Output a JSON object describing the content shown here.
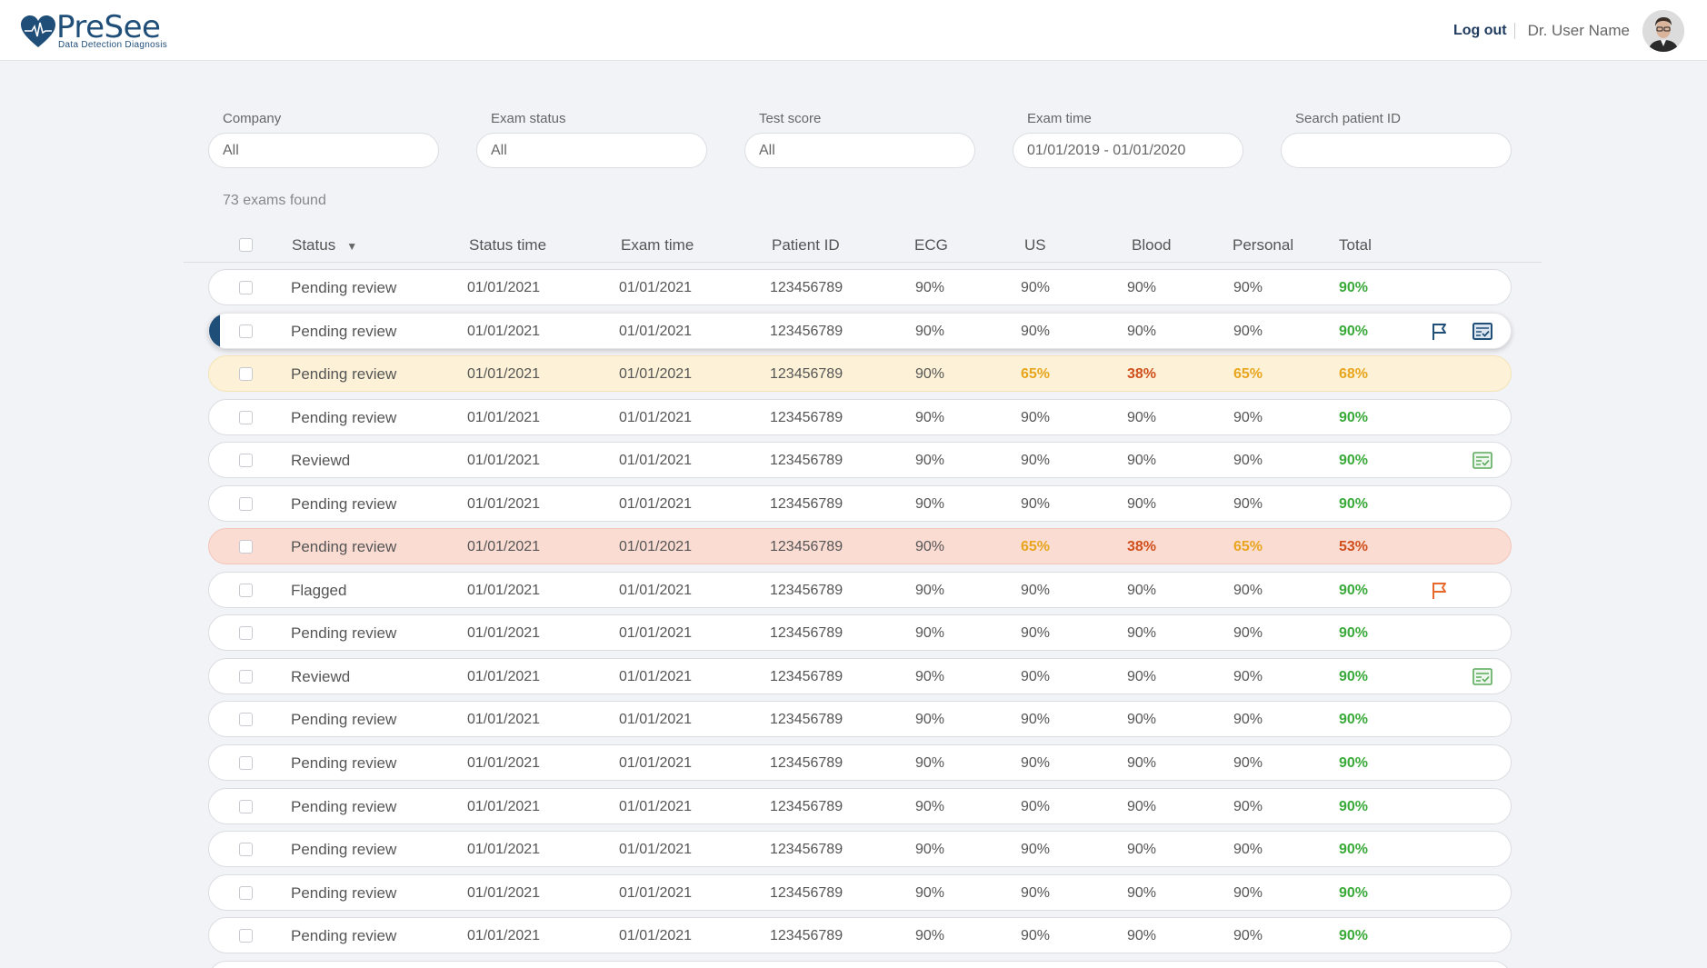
{
  "header": {
    "brand": "PreSee",
    "tagline": "Data Detection Diagnosis",
    "logout_label": "Log out",
    "user_name": "Dr. User Name"
  },
  "filters": [
    {
      "label": "Company",
      "value": "All"
    },
    {
      "label": "Exam status",
      "value": "All"
    },
    {
      "label": "Test score",
      "value": "All"
    },
    {
      "label": "Exam time",
      "value": "01/01/2019 - 01/01/2020"
    },
    {
      "label": "Search patient ID",
      "value": ""
    }
  ],
  "results_count": "73 exams found",
  "columns": {
    "status": "Status",
    "status_time": "Status time",
    "exam_time": "Exam time",
    "patient_id": "Patient ID",
    "ecg": "ECG",
    "us": "US",
    "blood": "Blood",
    "personal": "Personal",
    "total": "Total"
  },
  "colors": {
    "brand": "#1f4e79",
    "score_good": "#3aaa3a",
    "score_medium": "#e8a51e",
    "score_bad": "#d0501c",
    "row_warning": "#fdf2d7",
    "row_alert": "#fbdcd3",
    "flag_active": "#e8672b",
    "reviewed_icon": "#5aaa5a"
  },
  "rows": [
    {
      "status": "Pending review",
      "status_time": "01/01/2021",
      "exam_time": "01/01/2021",
      "patient_id": "123456789",
      "ecg": "90%",
      "us": "90%",
      "blood": "90%",
      "personal": "90%",
      "total": "90%"
    },
    {
      "status": "Pending review",
      "status_time": "01/01/2021",
      "exam_time": "01/01/2021",
      "patient_id": "123456789",
      "ecg": "90%",
      "us": "90%",
      "blood": "90%",
      "personal": "90%",
      "total": "90%"
    },
    {
      "status": "Pending review",
      "status_time": "01/01/2021",
      "exam_time": "01/01/2021",
      "patient_id": "123456789",
      "ecg": "90%",
      "us": "65%",
      "blood": "38%",
      "personal": "65%",
      "total": "68%"
    },
    {
      "status": "Pending review",
      "status_time": "01/01/2021",
      "exam_time": "01/01/2021",
      "patient_id": "123456789",
      "ecg": "90%",
      "us": "90%",
      "blood": "90%",
      "personal": "90%",
      "total": "90%"
    },
    {
      "status": "Reviewd",
      "status_time": "01/01/2021",
      "exam_time": "01/01/2021",
      "patient_id": "123456789",
      "ecg": "90%",
      "us": "90%",
      "blood": "90%",
      "personal": "90%",
      "total": "90%"
    },
    {
      "status": "Pending review",
      "status_time": "01/01/2021",
      "exam_time": "01/01/2021",
      "patient_id": "123456789",
      "ecg": "90%",
      "us": "90%",
      "blood": "90%",
      "personal": "90%",
      "total": "90%"
    },
    {
      "status": "Pending review",
      "status_time": "01/01/2021",
      "exam_time": "01/01/2021",
      "patient_id": "123456789",
      "ecg": "90%",
      "us": "65%",
      "blood": "38%",
      "personal": "65%",
      "total": "53%"
    },
    {
      "status": "Flagged",
      "status_time": "01/01/2021",
      "exam_time": "01/01/2021",
      "patient_id": "123456789",
      "ecg": "90%",
      "us": "90%",
      "blood": "90%",
      "personal": "90%",
      "total": "90%"
    },
    {
      "status": "Pending review",
      "status_time": "01/01/2021",
      "exam_time": "01/01/2021",
      "patient_id": "123456789",
      "ecg": "90%",
      "us": "90%",
      "blood": "90%",
      "personal": "90%",
      "total": "90%"
    },
    {
      "status": "Reviewd",
      "status_time": "01/01/2021",
      "exam_time": "01/01/2021",
      "patient_id": "123456789",
      "ecg": "90%",
      "us": "90%",
      "blood": "90%",
      "personal": "90%",
      "total": "90%"
    },
    {
      "status": "Pending review",
      "status_time": "01/01/2021",
      "exam_time": "01/01/2021",
      "patient_id": "123456789",
      "ecg": "90%",
      "us": "90%",
      "blood": "90%",
      "personal": "90%",
      "total": "90%"
    },
    {
      "status": "Pending review",
      "status_time": "01/01/2021",
      "exam_time": "01/01/2021",
      "patient_id": "123456789",
      "ecg": "90%",
      "us": "90%",
      "blood": "90%",
      "personal": "90%",
      "total": "90%"
    },
    {
      "status": "Pending review",
      "status_time": "01/01/2021",
      "exam_time": "01/01/2021",
      "patient_id": "123456789",
      "ecg": "90%",
      "us": "90%",
      "blood": "90%",
      "personal": "90%",
      "total": "90%"
    },
    {
      "status": "Pending review",
      "status_time": "01/01/2021",
      "exam_time": "01/01/2021",
      "patient_id": "123456789",
      "ecg": "90%",
      "us": "90%",
      "blood": "90%",
      "personal": "90%",
      "total": "90%"
    },
    {
      "status": "Pending review",
      "status_time": "01/01/2021",
      "exam_time": "01/01/2021",
      "patient_id": "123456789",
      "ecg": "90%",
      "us": "90%",
      "blood": "90%",
      "personal": "90%",
      "total": "90%"
    },
    {
      "status": "Pending review",
      "status_time": "01/01/2021",
      "exam_time": "01/01/2021",
      "patient_id": "123456789",
      "ecg": "90%",
      "us": "90%",
      "blood": "90%",
      "personal": "90%",
      "total": "90%"
    }
  ]
}
